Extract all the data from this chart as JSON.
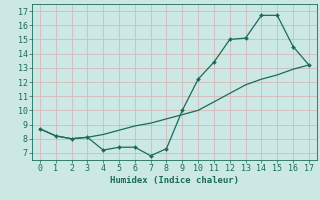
{
  "xlabel": "Humidex (Indice chaleur)",
  "ylabel": "",
  "bg_color": "#cce8e4",
  "grid_color": "#b8d8d4",
  "line_color": "#1a6b5a",
  "xlim": [
    -0.5,
    17.5
  ],
  "ylim": [
    6.5,
    17.5
  ],
  "xticks": [
    0,
    1,
    2,
    3,
    4,
    5,
    6,
    7,
    8,
    9,
    10,
    11,
    12,
    13,
    14,
    15,
    16,
    17
  ],
  "yticks": [
    7,
    8,
    9,
    10,
    11,
    12,
    13,
    14,
    15,
    16,
    17
  ],
  "series1_x": [
    0,
    1,
    2,
    3,
    4,
    5,
    6,
    7,
    8,
    9,
    10,
    11,
    12,
    13,
    14,
    15,
    16,
    17
  ],
  "series1_y": [
    8.7,
    8.2,
    8.0,
    8.1,
    7.2,
    7.4,
    7.4,
    6.8,
    7.3,
    10.0,
    12.2,
    13.4,
    15.0,
    15.1,
    16.7,
    16.7,
    14.5,
    13.2
  ],
  "series2_x": [
    0,
    1,
    2,
    3,
    4,
    5,
    6,
    7,
    8,
    9,
    10,
    11,
    12,
    13,
    14,
    15,
    16,
    17
  ],
  "series2_y": [
    8.7,
    8.2,
    8.0,
    8.1,
    8.3,
    8.6,
    8.9,
    9.1,
    9.4,
    9.7,
    10.0,
    10.6,
    11.2,
    11.8,
    12.2,
    12.5,
    12.9,
    13.2
  ],
  "axis_fontsize": 6,
  "tick_fontsize": 6,
  "xlabel_fontsize": 6.5
}
